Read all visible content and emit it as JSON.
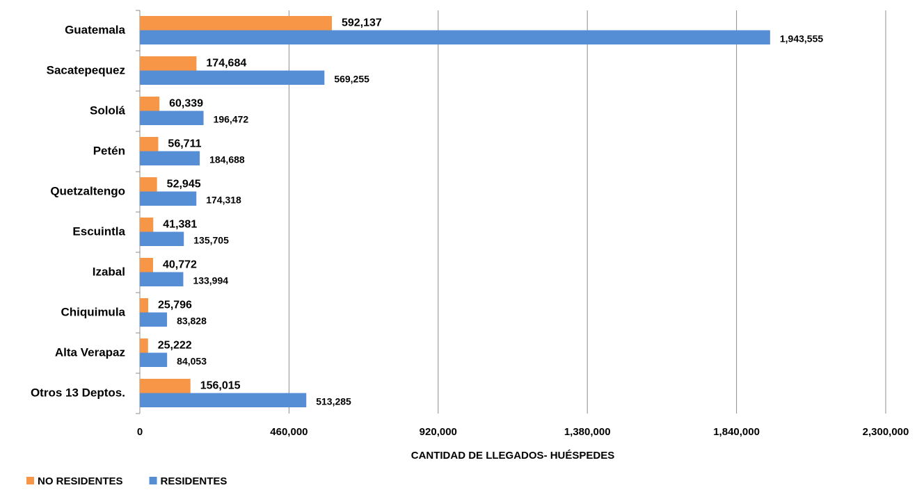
{
  "chart_data": {
    "type": "barh",
    "xlabel": "CANTIDAD DE LLEGADOS- HUÉSPEDES",
    "categories": [
      "Guatemala",
      "Sacatepequez",
      "Sololá",
      "Petén",
      "Quetzaltengo",
      "Escuintla",
      "Izabal",
      "Chiquimula",
      "Alta Verapaz",
      "Otros 13 Deptos."
    ],
    "series": [
      {
        "name": "NO RESIDENTES",
        "color": "#f79646",
        "label_color": "#e36c09",
        "values": [
          592137,
          174684,
          60339,
          56711,
          52945,
          41381,
          40772,
          25796,
          25222,
          156015
        ],
        "value_labels": [
          "592,137",
          "174,684",
          "60,339",
          "56,711",
          "52,945",
          "41,381",
          "40,772",
          "25,796",
          "25,222",
          "156,015"
        ]
      },
      {
        "name": "RESIDENTES",
        "color": "#558ed5",
        "label_color": "#1fb0e8",
        "values": [
          1943555,
          569255,
          196472,
          184688,
          174318,
          135705,
          133994,
          83828,
          84053,
          513285
        ],
        "value_labels": [
          "1,943,555",
          "569,255",
          "196,472",
          "184,688",
          "174,318",
          "135,705",
          "133,994",
          "83,828",
          "84,053",
          "513,285"
        ]
      }
    ],
    "xlim": [
      0,
      2300000
    ],
    "xticks": [
      0,
      {
        "value": 460000,
        "label": "460,000"
      },
      {
        "value": 920000,
        "label": "920,000"
      },
      {
        "value": 1380000,
        "label": "1,380,000"
      },
      {
        "value": 1840000,
        "label": "1,840,000"
      },
      {
        "value": 2300000,
        "label": "2,300,000"
      }
    ],
    "grid": true,
    "legend": "bottom-left"
  }
}
